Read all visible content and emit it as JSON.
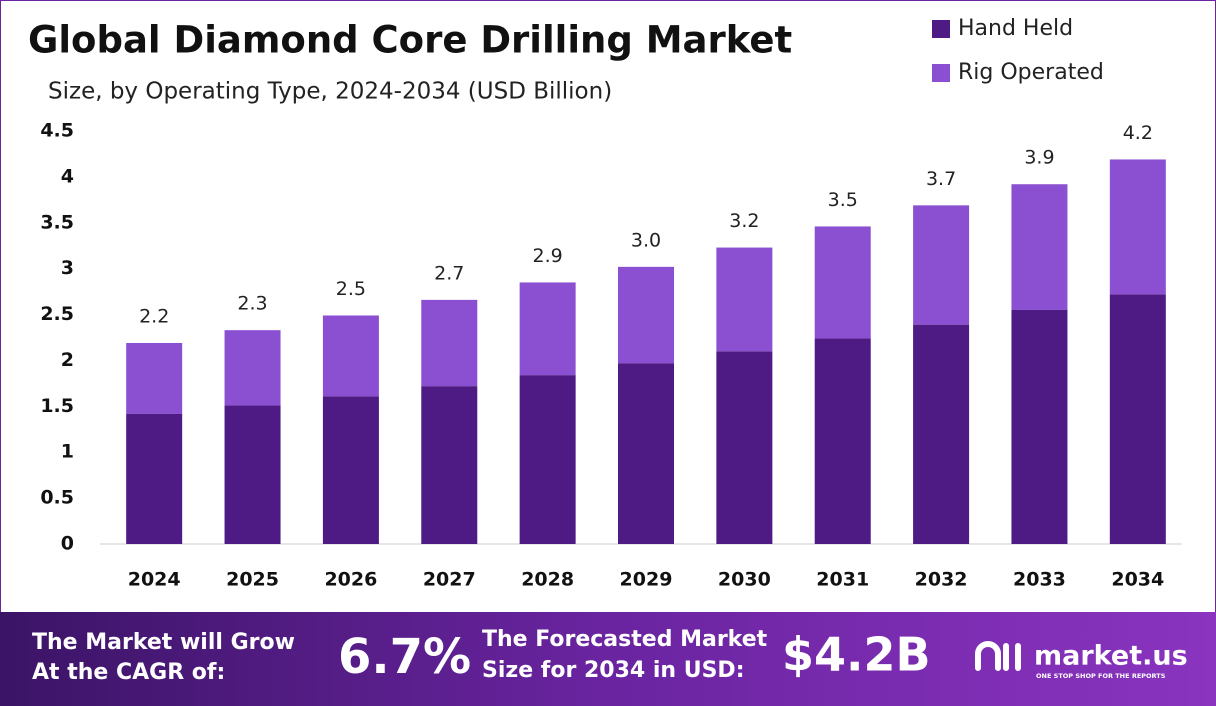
{
  "chart_data": {
    "type": "stacked-bar",
    "title": "Global Diamond Core Drilling Market",
    "subtitle": "Size, by Operating Type, 2024-2034 (USD Billion)",
    "categories": [
      "2024",
      "2025",
      "2026",
      "2027",
      "2028",
      "2029",
      "2030",
      "2031",
      "2032",
      "2033",
      "2034"
    ],
    "series": [
      {
        "name": "Hand Held",
        "color": "#4e1a84",
        "values": [
          1.42,
          1.51,
          1.61,
          1.72,
          1.84,
          1.97,
          2.1,
          2.24,
          2.39,
          2.55,
          2.72
        ]
      },
      {
        "name": "Rig Operated",
        "color": "#8b50d2",
        "values": [
          0.77,
          0.82,
          0.88,
          0.94,
          1.01,
          1.05,
          1.13,
          1.22,
          1.3,
          1.37,
          1.47
        ]
      }
    ],
    "total_labels": [
      "2.2",
      "2.3",
      "2.5",
      "2.7",
      "2.9",
      "3.0",
      "3.2",
      "3.5",
      "3.7",
      "3.9",
      "4.2"
    ],
    "ylim": [
      0,
      4.5
    ],
    "yticks": [
      0,
      0.5,
      1,
      1.5,
      2,
      2.5,
      3,
      3.5,
      4,
      4.5
    ],
    "legend": "top-right"
  },
  "footer": {
    "cagr_label": [
      "The Market will Grow",
      "At the CAGR of:"
    ],
    "cagr_value": "6.7%",
    "size_label": [
      "The Forecasted Market",
      "Size for 2034 in USD:"
    ],
    "size_value": "$4.2B",
    "brand": "market.us",
    "tagline": "ONE STOP SHOP FOR THE REPORTS"
  }
}
